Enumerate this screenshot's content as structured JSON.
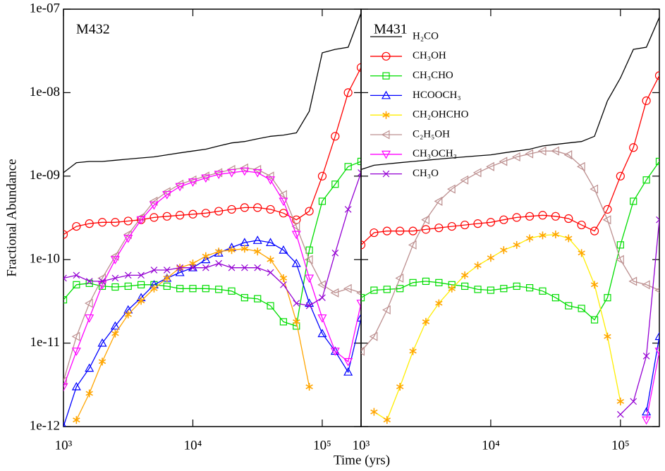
{
  "chart_data": [
    {
      "type": "line",
      "title": "M432",
      "xlabel": "Time (yrs)",
      "ylabel": "Fractional Abundance",
      "log_x": true,
      "log_y": true,
      "xlim": [
        1000,
        199526
      ],
      "ylim": [
        1e-12,
        1e-07
      ],
      "xticks": [
        {
          "value": 1000,
          "label": "10³"
        },
        {
          "value": 10000,
          "label": "10⁴"
        },
        {
          "value": 100000,
          "label": "10⁵"
        }
      ],
      "yticks": [
        {
          "value": 1e-07,
          "label": "1e-07"
        },
        {
          "value": 1e-08,
          "label": "1e-08"
        },
        {
          "value": 1e-09,
          "label": "1e-09"
        },
        1e-10,
        1e-11,
        1e-12
      ],
      "x": [
        1000,
        1259,
        1585,
        1995,
        2512,
        3162,
        3981,
        5012,
        6310,
        7943,
        10000,
        12589,
        15849,
        19953,
        25119,
        31623,
        39811,
        50119,
        63096,
        79433,
        100000,
        125893,
        158489,
        199526
      ],
      "series": [
        {
          "color": "#000000",
          "marker": "none",
          "values": [
            1.1e-09,
            1.45e-09,
            1.5e-09,
            1.5e-09,
            1.55e-09,
            1.6e-09,
            1.65e-09,
            1.7e-09,
            1.8e-09,
            1.9e-09,
            2e-09,
            2.1e-09,
            2.3e-09,
            2.5e-09,
            2.6e-09,
            2.8e-09,
            3e-09,
            3.1e-09,
            3.3e-09,
            6e-09,
            3e-08,
            3.3e-08,
            3.5e-08,
            9e-08
          ]
        },
        {
          "color": "#ff0000",
          "marker": "circle",
          "values": [
            2e-10,
            2.5e-10,
            2.7e-10,
            2.8e-10,
            2.8e-10,
            2.9e-10,
            3e-10,
            3.2e-10,
            3.3e-10,
            3.4e-10,
            3.5e-10,
            3.6e-10,
            3.8e-10,
            4e-10,
            4.2e-10,
            4.2e-10,
            4e-10,
            3.6e-10,
            3e-10,
            3.8e-10,
            1e-09,
            3e-09,
            1e-08,
            2e-08
          ]
        },
        {
          "color": "#00dd00",
          "marker": "square",
          "values": [
            3.3e-11,
            5e-11,
            5.2e-11,
            4.8e-11,
            4.7e-11,
            4.8e-11,
            5e-11,
            5e-11,
            4.8e-11,
            4.5e-11,
            4.5e-11,
            4.5e-11,
            4.4e-11,
            4.2e-11,
            3.5e-11,
            3.4e-11,
            2.8e-11,
            1.8e-11,
            1.6e-11,
            1.3e-10,
            5e-10,
            8e-10,
            1.3e-09,
            1.5e-09
          ]
        },
        {
          "color": "#0000ff",
          "marker": "triangle-up",
          "values": [
            1e-12,
            3e-12,
            5e-12,
            1e-11,
            1.6e-11,
            2.5e-11,
            3.5e-11,
            5e-11,
            6e-11,
            7e-11,
            8e-11,
            1e-10,
            1.2e-10,
            1.4e-10,
            1.6e-10,
            1.7e-10,
            1.6e-10,
            1.3e-10,
            9e-11,
            3e-11,
            1.3e-11,
            8e-12,
            4.5e-12,
            2e-11
          ]
        },
        {
          "color": "#ffa500",
          "marker": "star",
          "values": [
            null,
            1.2e-12,
            2.5e-12,
            6e-12,
            1.3e-11,
            2.2e-11,
            3.2e-11,
            4.5e-11,
            6e-11,
            8e-11,
            9e-11,
            1.1e-10,
            1.25e-10,
            1.3e-10,
            1.35e-10,
            1.25e-10,
            1e-10,
            6e-11,
            1.8e-11,
            3e-12,
            null,
            null,
            null,
            null
          ]
        },
        {
          "color": "#bc8f8f",
          "marker": "triangle-left",
          "values": [
            3.5e-12,
            1.2e-11,
            3e-11,
            6e-11,
            1.1e-10,
            2e-10,
            3.2e-10,
            5e-10,
            6.5e-10,
            8e-10,
            9e-10,
            1e-09,
            1.1e-09,
            1.2e-09,
            1.25e-09,
            1.2e-09,
            1e-09,
            6e-10,
            2.5e-10,
            1e-10,
            5e-11,
            4e-11,
            4.5e-11,
            4e-11
          ]
        },
        {
          "color": "#ff00ff",
          "marker": "triangle-down",
          "values": [
            3e-12,
            8e-12,
            2e-11,
            5e-11,
            1e-10,
            1.8e-10,
            3e-10,
            4.5e-10,
            6e-10,
            7.5e-10,
            8.5e-10,
            9.5e-10,
            1.05e-09,
            1.1e-09,
            1.15e-09,
            1.1e-09,
            9e-10,
            5e-10,
            2e-10,
            6e-11,
            2e-11,
            8e-12,
            6e-12,
            3e-11
          ]
        },
        {
          "color": "#9400d3",
          "marker": "x",
          "values": [
            6e-11,
            6.5e-11,
            5.5e-11,
            5.5e-11,
            6e-11,
            6.5e-11,
            6.5e-11,
            7.5e-11,
            7.5e-11,
            8e-11,
            8e-11,
            8e-11,
            9e-11,
            8e-11,
            8e-11,
            8e-11,
            7e-11,
            5e-11,
            3e-11,
            2.8e-11,
            3.5e-11,
            1.2e-10,
            4e-10,
            1.1e-09
          ]
        }
      ]
    },
    {
      "type": "line",
      "title": "M431",
      "log_x": true,
      "log_y": true,
      "legend": "upper left",
      "xlim": [
        1000,
        199526
      ],
      "ylim": [
        1e-12,
        1e-07
      ],
      "xticks": [
        {
          "value": 1000,
          "label": "10³"
        },
        {
          "value": 10000,
          "label": "10⁴"
        },
        {
          "value": 100000,
          "label": "10⁵"
        }
      ],
      "yticks": [
        1e-07,
        1e-08,
        1e-09,
        1e-10,
        1e-11,
        1e-12
      ],
      "x": [
        1000,
        1259,
        1585,
        1995,
        2512,
        3162,
        3981,
        5012,
        6310,
        7943,
        10000,
        12589,
        15849,
        19953,
        25119,
        31623,
        39811,
        50119,
        63096,
        79433,
        100000,
        125893,
        158489,
        199526
      ],
      "series": [
        {
          "name": "H₂CO",
          "color": "#000000",
          "marker": "none",
          "values": [
            1.2e-09,
            1.35e-09,
            1.4e-09,
            1.45e-09,
            1.5e-09,
            1.55e-09,
            1.6e-09,
            1.65e-09,
            1.7e-09,
            1.75e-09,
            1.8e-09,
            1.9e-09,
            2e-09,
            2.1e-09,
            2.3e-09,
            2.4e-09,
            2.5e-09,
            2.6e-09,
            3e-09,
            8e-09,
            1.5e-08,
            3.3e-08,
            3.5e-08,
            8e-08
          ]
        },
        {
          "name": "CH₃OH",
          "color": "#ff0000",
          "marker": "circle",
          "values": [
            1.5e-10,
            2.1e-10,
            2.2e-10,
            2.2e-10,
            2.2e-10,
            2.3e-10,
            2.4e-10,
            2.5e-10,
            2.6e-10,
            2.7e-10,
            2.8e-10,
            3e-10,
            3.2e-10,
            3.3e-10,
            3.4e-10,
            3.3e-10,
            3.1e-10,
            2.6e-10,
            2.2e-10,
            4e-10,
            1e-09,
            2.2e-09,
            8e-09,
            1.6e-08
          ]
        },
        {
          "name": "CH₃CHO",
          "color": "#00dd00",
          "marker": "square",
          "values": [
            3.5e-11,
            4.3e-11,
            4.4e-11,
            4.5e-11,
            5.3e-11,
            5.5e-11,
            5.3e-11,
            5e-11,
            4.8e-11,
            4.4e-11,
            4.3e-11,
            4.5e-11,
            4.8e-11,
            4.6e-11,
            4.2e-11,
            3.5e-11,
            2.8e-11,
            2.6e-11,
            1.9e-11,
            3.5e-11,
            1.5e-10,
            5e-10,
            9e-10,
            1.5e-09
          ]
        },
        {
          "name": "HCOOCH₃",
          "color": "#0000ff",
          "marker": "triangle-up",
          "values": [
            null,
            null,
            null,
            null,
            null,
            null,
            null,
            null,
            null,
            null,
            null,
            null,
            null,
            null,
            null,
            null,
            null,
            null,
            null,
            null,
            null,
            null,
            1.5e-12,
            1.2e-11
          ]
        },
        {
          "name": "CH₂OHCHO",
          "color": "#ffa500",
          "line_color": "#ffee00",
          "marker": "star",
          "values": [
            null,
            1.5e-12,
            1.2e-12,
            3e-12,
            8e-12,
            1.8e-11,
            3e-11,
            4.5e-11,
            6.5e-11,
            8.5e-11,
            1.05e-10,
            1.3e-10,
            1.5e-10,
            1.8e-10,
            1.95e-10,
            2e-10,
            1.8e-10,
            1.2e-10,
            5e-11,
            1.2e-11,
            2e-12,
            null,
            null,
            null
          ]
        },
        {
          "name": "C₂H₅OH",
          "color": "#bc8f8f",
          "marker": "triangle-left",
          "values": [
            8e-12,
            1.2e-11,
            2.5e-11,
            6e-11,
            1.5e-10,
            3e-10,
            5e-10,
            7e-10,
            9e-10,
            1.1e-09,
            1.3e-09,
            1.5e-09,
            1.7e-09,
            1.85e-09,
            2e-09,
            2e-09,
            1.8e-09,
            1.3e-09,
            7e-10,
            3e-10,
            1e-10,
            5.5e-11,
            5e-11,
            4.3e-11
          ]
        },
        {
          "name": "CH₃OCH₃",
          "color": "#ff00ff",
          "marker": "triangle-down",
          "values": [
            null,
            null,
            null,
            null,
            null,
            null,
            null,
            null,
            null,
            null,
            null,
            null,
            null,
            null,
            null,
            null,
            null,
            null,
            null,
            null,
            null,
            null,
            1.2e-12,
            8e-12
          ]
        },
        {
          "name": "CH₃O",
          "color": "#9400d3",
          "marker": "x",
          "values": [
            null,
            null,
            null,
            null,
            null,
            null,
            null,
            null,
            null,
            null,
            null,
            null,
            null,
            null,
            null,
            null,
            null,
            null,
            null,
            null,
            1.4e-12,
            2e-12,
            7e-12,
            3e-10
          ]
        }
      ]
    }
  ]
}
